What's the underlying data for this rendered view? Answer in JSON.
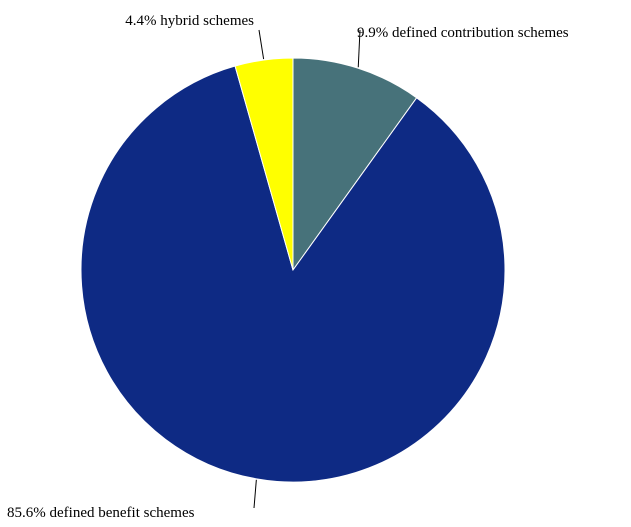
{
  "chart_data": {
    "type": "pie",
    "slices": [
      {
        "label": "9.9% defined contribution schemes",
        "value": 9.9,
        "color": "#47727a"
      },
      {
        "label": "85.6% defined benefit schemes",
        "value": 85.6,
        "color": "#0e2a84"
      },
      {
        "label": "4.4% hybrid schemes",
        "value": 4.4,
        "color": "#ffff00"
      }
    ],
    "start_angle": "12 o'clock",
    "direction": "clockwise",
    "legend": "none"
  }
}
